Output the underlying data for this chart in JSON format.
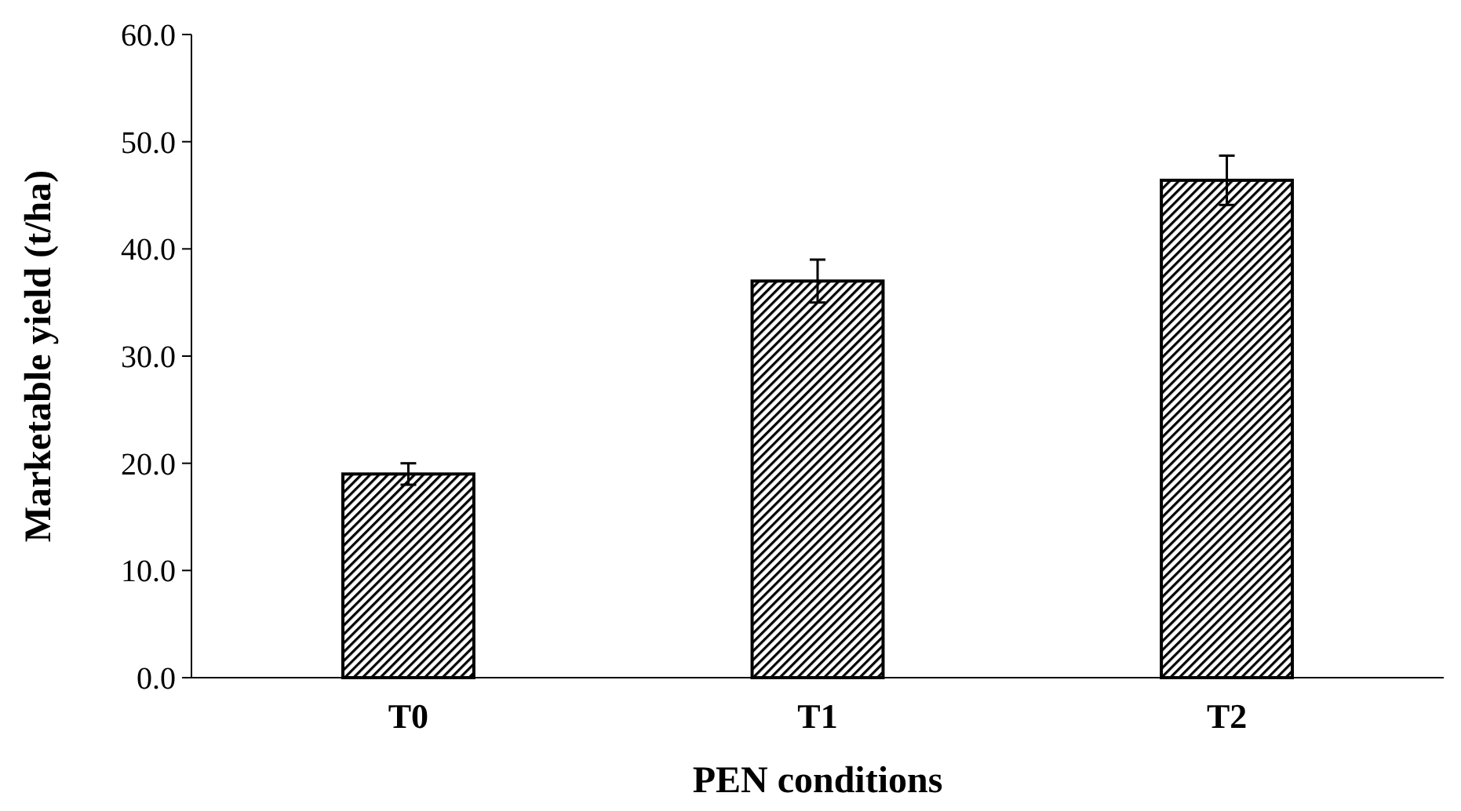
{
  "chart_data": {
    "type": "bar",
    "xlabel": "PEN conditions",
    "ylabel": "Marketable yield (t/ha)",
    "categories": [
      "T0",
      "T1",
      "T2"
    ],
    "values": [
      19.0,
      37.0,
      46.4
    ],
    "errors": [
      1.0,
      2.0,
      2.3
    ],
    "color": "#000000",
    "ylim": [
      0,
      60
    ],
    "yticks": [
      {
        "value": 0,
        "label": "0.0"
      },
      {
        "value": 10,
        "label": "10.0"
      },
      {
        "value": 20,
        "label": "20.0"
      },
      {
        "value": 30,
        "label": "30.0"
      },
      {
        "value": 40,
        "label": "40.0"
      },
      {
        "value": 50,
        "label": "50.0"
      },
      {
        "value": 60,
        "label": "60.0"
      }
    ]
  }
}
